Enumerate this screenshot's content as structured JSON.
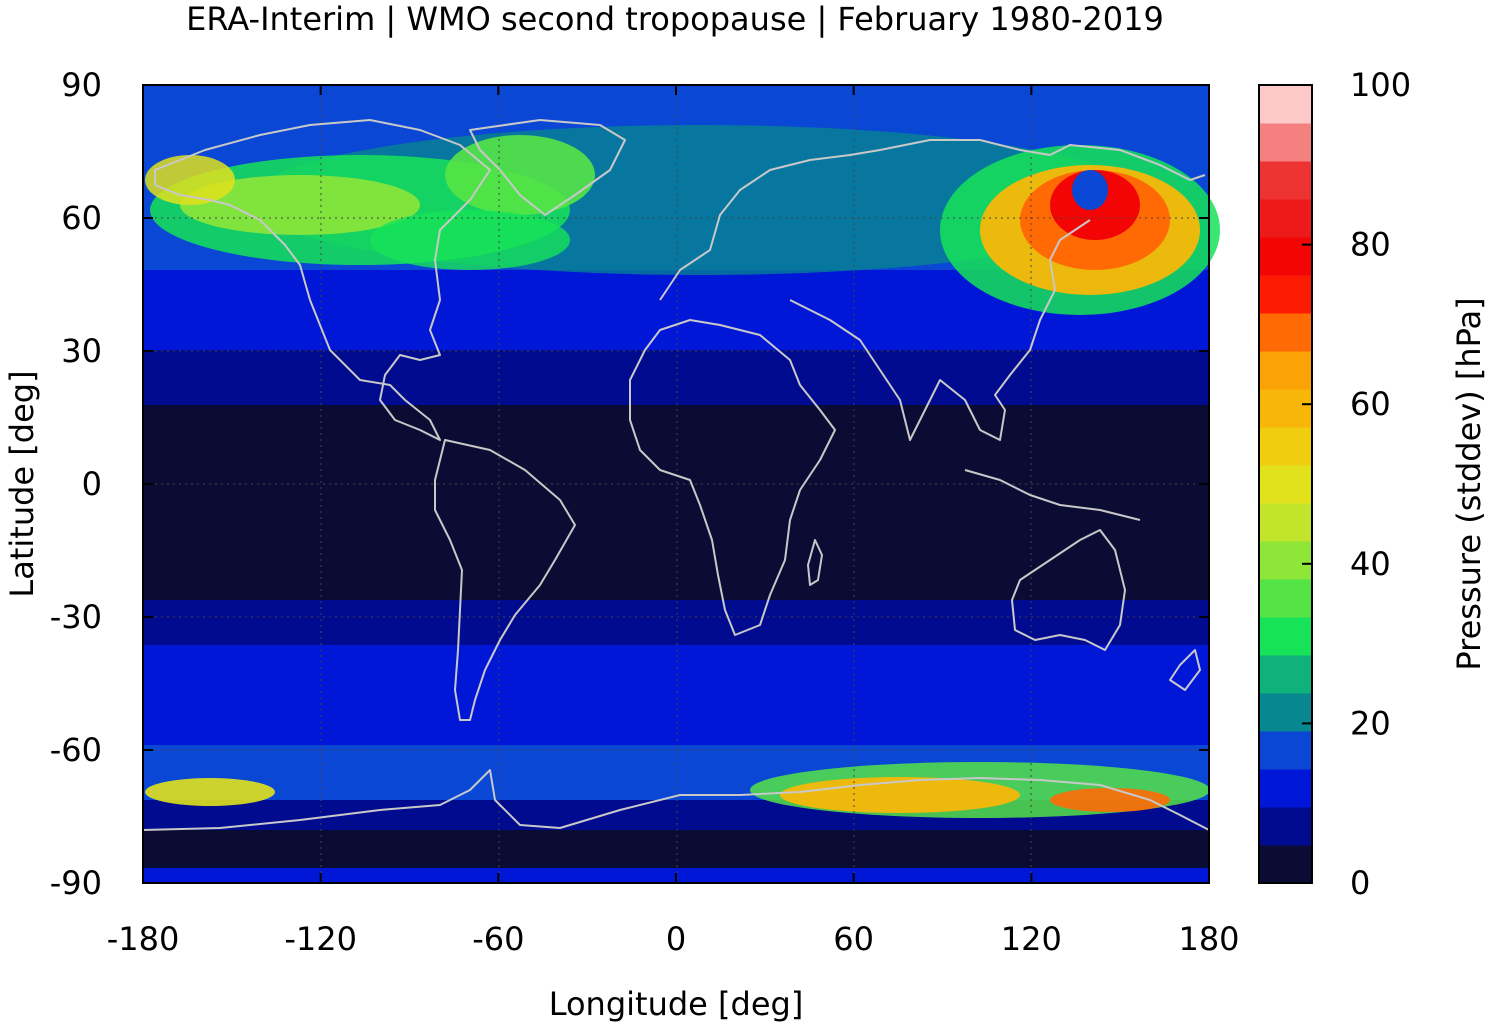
{
  "title": "ERA-Interim | WMO second tropopause | February 1980-2019",
  "xaxis": {
    "label": "Longitude [deg]",
    "range": [
      -180,
      180
    ],
    "ticks": [
      "-180",
      "-120",
      "-60",
      "0",
      "60",
      "120",
      "180"
    ]
  },
  "yaxis": {
    "label": "Latitude [deg]",
    "range": [
      -90,
      90
    ],
    "ticks": [
      "90",
      "60",
      "30",
      "0",
      "-30",
      "-60",
      "-90"
    ]
  },
  "colorbar": {
    "label": "Pressure (stddev) [hPa]",
    "range": [
      0,
      100
    ],
    "ticks": [
      "100",
      "80",
      "60",
      "40",
      "20",
      "0"
    ],
    "bins": [
      "#0b0c33",
      "#010b8f",
      "#0017d8",
      "#0a47d4",
      "#07878f",
      "#0fb27a",
      "#16e357",
      "#55e446",
      "#8de638",
      "#c2e42a",
      "#e1e21c",
      "#f1cd10",
      "#f8b708",
      "#fba206",
      "#ff6a05",
      "#fe1b04",
      "#f30505",
      "#ec1a1a",
      "#ee3333",
      "#f48080",
      "#fcc8c8"
    ]
  },
  "map": {
    "type": "gridded field with coastlines",
    "colormap_field": "standard deviation of second tropopause pressure",
    "zones": [
      {
        "lat_range": [
          -20,
          20
        ],
        "stddev_hpa": "0-5",
        "description": "tropics, near zero"
      },
      {
        "lat_range": [
          20,
          35
        ],
        "stddev_hpa": "5-10"
      },
      {
        "lat_range": [
          -35,
          -20
        ],
        "stddev_hpa": "5-10"
      },
      {
        "lat_range": [
          35,
          50
        ],
        "stddev_hpa": "10-20"
      },
      {
        "lat_range": [
          -60,
          -35
        ],
        "stddev_hpa": "5-20"
      },
      {
        "lat_range": [
          50,
          75
        ],
        "stddev_hpa": "20-50",
        "description": "North America / North Atlantic band"
      },
      {
        "region": "Northeast Asia / Kamchatka",
        "lat_range": [
          45,
          75
        ],
        "lon_range": [
          110,
          180
        ],
        "stddev_hpa": "60-90"
      },
      {
        "region": "East Antarctic coast",
        "lat_range": [
          -75,
          -65
        ],
        "lon_range": [
          40,
          170
        ],
        "stddev_hpa": "40-70"
      },
      {
        "lat_range": [
          -90,
          -75
        ],
        "stddev_hpa": "0-5",
        "description": "Antarctic interior"
      }
    ]
  }
}
